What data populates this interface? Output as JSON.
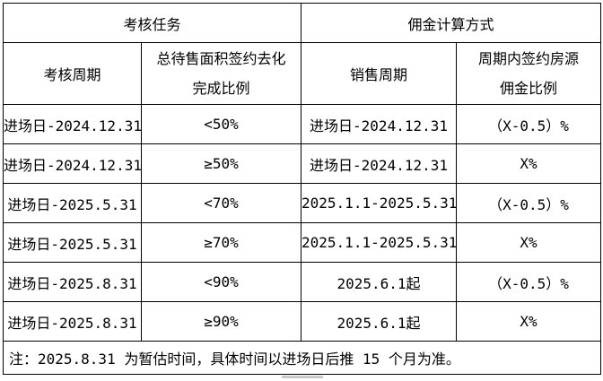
{
  "header": {
    "group_assessment_task": "考核任务",
    "group_commission_method": "佣金计算方式",
    "assessment_period": "考核周期",
    "completion_ratio_line1": "总待售面积签约去化",
    "completion_ratio_line2": "完成比例",
    "sales_period": "销售周期",
    "commission_ratio_line1": "周期内签约房源",
    "commission_ratio_line2": "佣金比例"
  },
  "rows": [
    {
      "assessment_period": "进场日-2024.12.31",
      "completion_ratio": "<50%",
      "sales_period": "进场日-2024.12.31",
      "commission": "（X-0.5）%"
    },
    {
      "assessment_period": "进场日-2024.12.31",
      "completion_ratio": "≥50%",
      "sales_period": "进场日-2024.12.31",
      "commission": "X%"
    },
    {
      "assessment_period": "进场日-2025.5.31",
      "completion_ratio": "<70%",
      "sales_period": "2025.1.1-2025.5.31",
      "commission": "（X-0.5）%"
    },
    {
      "assessment_period": "进场日-2025.5.31",
      "completion_ratio": "≥70%",
      "sales_period": "2025.1.1-2025.5.31",
      "commission": "X%"
    },
    {
      "assessment_period": "进场日-2025.8.31",
      "completion_ratio": "<90%",
      "sales_period": "2025.6.1起",
      "commission": "（X-0.5）%"
    },
    {
      "assessment_period": "进场日-2025.8.31",
      "completion_ratio": "≥90%",
      "sales_period": "2025.6.1起",
      "commission": "X%"
    }
  ],
  "note": "注：2025.8.31 为暂估时间，具体时间以进场日后推 15 个月为准。",
  "colors": {
    "border": "#000000",
    "text": "#000000",
    "background": "#ffffff",
    "artifact": "#c9c9c9"
  }
}
